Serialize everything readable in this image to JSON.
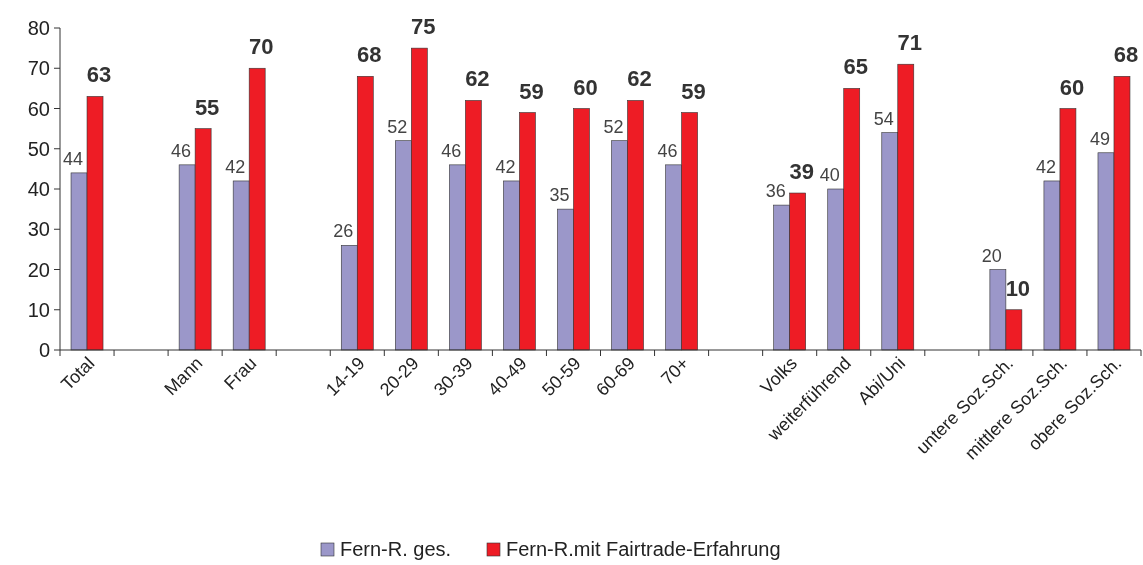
{
  "chart_data": {
    "type": "bar",
    "categories": [
      "Total",
      null,
      "Mann",
      "Frau",
      null,
      "14-19",
      "20-29",
      "30-39",
      "40-49",
      "50-59",
      "60-69",
      "70+",
      null,
      "Volks",
      "weiterführend",
      "Abi/Uni",
      null,
      "untere Soz.Sch.",
      "mittlere Soz.Sch.",
      "obere Soz.Sch."
    ],
    "series": [
      {
        "name": "Fern-R. ges.",
        "color": "#9b97c9",
        "values": [
          44,
          null,
          46,
          42,
          null,
          26,
          52,
          46,
          42,
          35,
          52,
          46,
          null,
          36,
          40,
          54,
          null,
          20,
          42,
          49
        ]
      },
      {
        "name": "Fern-R.mit Fairtrade-Erfahrung",
        "color": "#ee1c25",
        "values": [
          63,
          null,
          55,
          70,
          null,
          68,
          75,
          62,
          59,
          60,
          62,
          59,
          null,
          39,
          65,
          71,
          null,
          10,
          60,
          68
        ]
      }
    ],
    "ylim": [
      0,
      80
    ],
    "yticks": [
      0,
      10,
      20,
      30,
      40,
      50,
      60,
      70,
      80
    ],
    "grid": false,
    "legend": "bottom",
    "data_labels": true
  }
}
